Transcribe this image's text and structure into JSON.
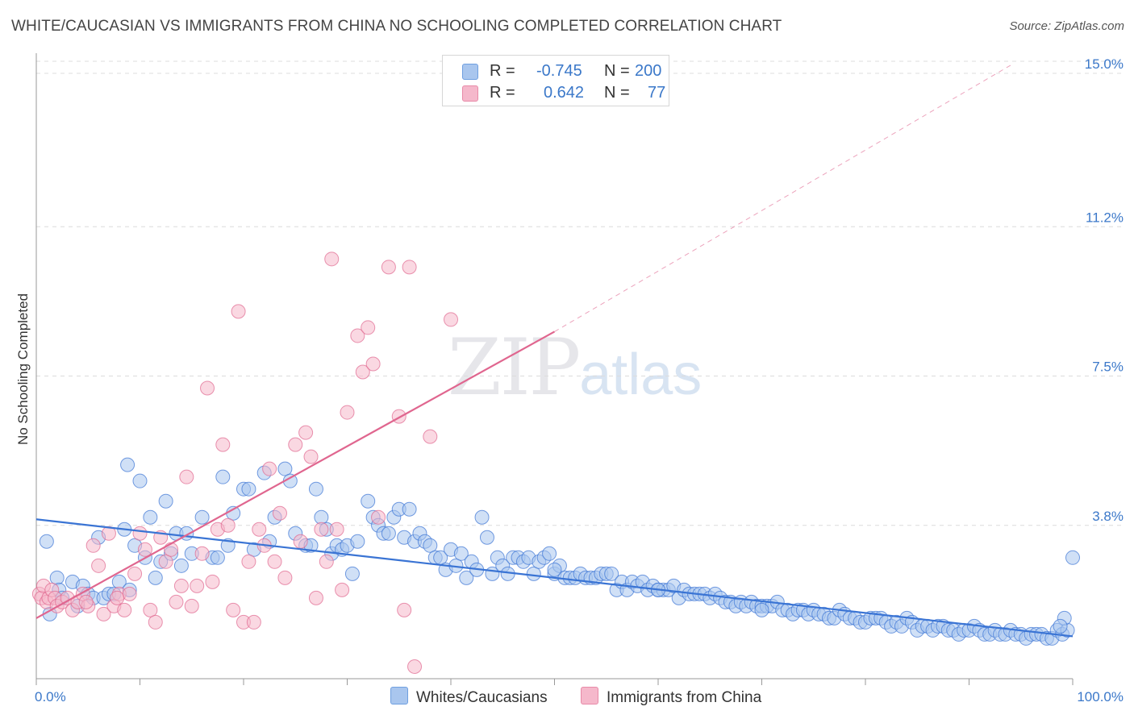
{
  "title": "WHITE/CAUCASIAN VS IMMIGRANTS FROM CHINA NO SCHOOLING COMPLETED CORRELATION CHART",
  "source": "Source: ZipAtlas.com",
  "watermark": {
    "zip": "ZIP",
    "atlas": "atlas"
  },
  "legend": {
    "rows": [
      {
        "r_label": "R =",
        "r_value": "-0.745",
        "n_label": "N =",
        "n_value": "200",
        "color": "#a9c6ee"
      },
      {
        "r_label": "R =",
        "r_value": "0.642",
        "n_label": "N =",
        "n_value": "77",
        "color": "#f5b8cb"
      }
    ]
  },
  "bottom_legend": [
    {
      "label": "Whites/Caucasians",
      "color": "#a9c6ee"
    },
    {
      "label": "Immigrants from China",
      "color": "#f5b8cb"
    }
  ],
  "chart_data": {
    "type": "scatter",
    "title": "WHITE/CAUCASIAN VS IMMIGRANTS FROM CHINA NO SCHOOLING COMPLETED CORRELATION CHART",
    "xlabel": "",
    "ylabel": "No Schooling Completed",
    "xlim": [
      0,
      100
    ],
    "ylim": [
      0,
      15.3
    ],
    "x_tick_labels": [
      "0.0%",
      "100.0%"
    ],
    "y_ticks": [
      3.8,
      7.5,
      11.2,
      15.0
    ],
    "y_tick_labels": [
      "3.8%",
      "7.5%",
      "11.2%",
      "15.0%"
    ],
    "grid": "horizontal dashed",
    "legend_placement": "top-center",
    "series": [
      {
        "name": "Whites/Caucasians",
        "color": "#3a74d4",
        "fill": "#a9c6ee",
        "trend": {
          "x0": 0,
          "y0": 3.95,
          "x1": 100,
          "y1": 1.05,
          "dash_to": null
        },
        "points": [
          [
            1,
            3.4
          ],
          [
            1.3,
            1.6
          ],
          [
            2,
            2.5
          ],
          [
            2.2,
            2.2
          ],
          [
            2.5,
            2.0
          ],
          [
            3.5,
            2.4
          ],
          [
            4,
            1.8
          ],
          [
            4.5,
            2.3
          ],
          [
            5,
            2.1
          ],
          [
            5.5,
            2.0
          ],
          [
            6,
            3.5
          ],
          [
            6.5,
            2.0
          ],
          [
            7,
            2.1
          ],
          [
            7.5,
            2.1
          ],
          [
            8,
            2.4
          ],
          [
            8.5,
            3.7
          ],
          [
            8.8,
            5.3
          ],
          [
            9,
            2.2
          ],
          [
            9.5,
            3.3
          ],
          [
            10,
            4.9
          ],
          [
            10.5,
            3.0
          ],
          [
            11,
            4.0
          ],
          [
            11.5,
            2.5
          ],
          [
            12,
            2.9
          ],
          [
            12.5,
            4.4
          ],
          [
            13,
            3.1
          ],
          [
            13.5,
            3.6
          ],
          [
            14,
            2.8
          ],
          [
            14.5,
            3.6
          ],
          [
            15,
            3.1
          ],
          [
            16,
            4.0
          ],
          [
            17,
            3.0
          ],
          [
            17.5,
            3.0
          ],
          [
            18,
            5.0
          ],
          [
            18.5,
            3.3
          ],
          [
            19,
            4.1
          ],
          [
            20,
            4.7
          ],
          [
            20.5,
            4.7
          ],
          [
            21,
            3.2
          ],
          [
            22,
            5.1
          ],
          [
            22.5,
            3.4
          ],
          [
            23,
            4.0
          ],
          [
            24,
            5.2
          ],
          [
            24.5,
            4.9
          ],
          [
            25,
            3.6
          ],
          [
            26,
            3.3
          ],
          [
            26.5,
            3.3
          ],
          [
            27,
            4.7
          ],
          [
            27.5,
            4.0
          ],
          [
            28,
            3.7
          ],
          [
            28.5,
            3.1
          ],
          [
            29,
            3.3
          ],
          [
            29.5,
            3.2
          ],
          [
            30,
            3.3
          ],
          [
            30.5,
            2.6
          ],
          [
            31,
            3.4
          ],
          [
            32,
            4.4
          ],
          [
            32.5,
            4.0
          ],
          [
            33,
            3.8
          ],
          [
            33.5,
            3.6
          ],
          [
            34,
            3.6
          ],
          [
            34.5,
            4.0
          ],
          [
            35,
            4.2
          ],
          [
            35.5,
            3.5
          ],
          [
            36,
            4.2
          ],
          [
            36.5,
            3.4
          ],
          [
            37,
            3.6
          ],
          [
            37.5,
            3.4
          ],
          [
            38,
            3.3
          ],
          [
            38.5,
            3.0
          ],
          [
            39,
            3.0
          ],
          [
            39.5,
            2.7
          ],
          [
            40,
            3.2
          ],
          [
            40.5,
            2.8
          ],
          [
            41,
            3.1
          ],
          [
            41.5,
            2.5
          ],
          [
            42,
            2.9
          ],
          [
            42.5,
            2.7
          ],
          [
            43,
            4.0
          ],
          [
            43.5,
            3.5
          ],
          [
            44,
            2.6
          ],
          [
            44.5,
            3.0
          ],
          [
            45,
            2.8
          ],
          [
            45.5,
            2.6
          ],
          [
            46,
            3.0
          ],
          [
            46.5,
            3.0
          ],
          [
            47,
            2.9
          ],
          [
            47.5,
            3.0
          ],
          [
            48,
            2.6
          ],
          [
            48.5,
            2.9
          ],
          [
            49,
            3.0
          ],
          [
            49.5,
            3.1
          ],
          [
            50,
            2.6
          ],
          [
            50.5,
            2.8
          ],
          [
            51,
            2.5
          ],
          [
            51.5,
            2.5
          ],
          [
            52,
            2.5
          ],
          [
            52.5,
            2.6
          ],
          [
            53,
            2.5
          ],
          [
            53.5,
            2.5
          ],
          [
            54,
            2.5
          ],
          [
            54.5,
            2.6
          ],
          [
            55,
            2.6
          ],
          [
            55.5,
            2.6
          ],
          [
            56,
            2.2
          ],
          [
            56.5,
            2.4
          ],
          [
            57,
            2.2
          ],
          [
            57.5,
            2.4
          ],
          [
            58,
            2.3
          ],
          [
            58.5,
            2.4
          ],
          [
            59,
            2.2
          ],
          [
            59.5,
            2.3
          ],
          [
            60,
            2.2
          ],
          [
            60.5,
            2.2
          ],
          [
            61,
            2.2
          ],
          [
            61.5,
            2.3
          ],
          [
            62,
            2.0
          ],
          [
            62.5,
            2.2
          ],
          [
            63,
            2.1
          ],
          [
            63.5,
            2.1
          ],
          [
            64,
            2.1
          ],
          [
            64.5,
            2.1
          ],
          [
            65,
            2.0
          ],
          [
            65.5,
            2.1
          ],
          [
            66,
            2.0
          ],
          [
            66.5,
            1.9
          ],
          [
            67,
            1.9
          ],
          [
            67.5,
            1.8
          ],
          [
            68,
            1.9
          ],
          [
            68.5,
            1.8
          ],
          [
            69,
            1.9
          ],
          [
            69.5,
            1.8
          ],
          [
            70,
            1.8
          ],
          [
            70.5,
            1.8
          ],
          [
            71,
            1.8
          ],
          [
            71.5,
            1.9
          ],
          [
            72,
            1.7
          ],
          [
            72.5,
            1.7
          ],
          [
            73,
            1.6
          ],
          [
            73.5,
            1.7
          ],
          [
            74,
            1.7
          ],
          [
            74.5,
            1.6
          ],
          [
            75,
            1.7
          ],
          [
            75.5,
            1.6
          ],
          [
            76,
            1.6
          ],
          [
            76.5,
            1.5
          ],
          [
            77,
            1.5
          ],
          [
            77.5,
            1.7
          ],
          [
            78,
            1.6
          ],
          [
            78.5,
            1.5
          ],
          [
            79,
            1.5
          ],
          [
            79.5,
            1.4
          ],
          [
            80,
            1.4
          ],
          [
            80.5,
            1.5
          ],
          [
            81,
            1.5
          ],
          [
            81.5,
            1.5
          ],
          [
            82,
            1.4
          ],
          [
            82.5,
            1.3
          ],
          [
            83,
            1.4
          ],
          [
            83.5,
            1.3
          ],
          [
            84,
            1.5
          ],
          [
            84.5,
            1.4
          ],
          [
            85,
            1.2
          ],
          [
            85.5,
            1.3
          ],
          [
            86,
            1.3
          ],
          [
            86.5,
            1.2
          ],
          [
            87,
            1.3
          ],
          [
            87.5,
            1.3
          ],
          [
            88,
            1.2
          ],
          [
            88.5,
            1.2
          ],
          [
            89,
            1.1
          ],
          [
            89.5,
            1.2
          ],
          [
            90,
            1.2
          ],
          [
            90.5,
            1.3
          ],
          [
            91,
            1.2
          ],
          [
            91.5,
            1.1
          ],
          [
            92,
            1.1
          ],
          [
            92.5,
            1.2
          ],
          [
            93,
            1.1
          ],
          [
            93.5,
            1.1
          ],
          [
            94,
            1.2
          ],
          [
            94.5,
            1.1
          ],
          [
            95,
            1.1
          ],
          [
            95.5,
            1.0
          ],
          [
            96,
            1.1
          ],
          [
            96.5,
            1.1
          ],
          [
            97,
            1.1
          ],
          [
            97.5,
            1.0
          ],
          [
            98,
            1.0
          ],
          [
            98.5,
            1.2
          ],
          [
            99,
            1.1
          ],
          [
            99.5,
            1.2
          ],
          [
            100,
            3.0
          ],
          [
            99.2,
            1.5
          ],
          [
            98.8,
            1.3
          ],
          [
            70,
            1.7
          ],
          [
            60,
            2.2
          ],
          [
            50,
            2.7
          ]
        ]
      },
      {
        "name": "Immigrants from China",
        "color": "#e0668f",
        "fill": "#f5b8cb",
        "trend": {
          "x0": 0,
          "y0": 1.5,
          "x1": 50,
          "y1": 8.6,
          "dash_to": {
            "x": 94,
            "y": 15.0
          }
        },
        "points": [
          [
            0.3,
            2.1
          ],
          [
            0.5,
            2.0
          ],
          [
            0.7,
            2.3
          ],
          [
            1,
            1.9
          ],
          [
            1.2,
            2.0
          ],
          [
            1.5,
            2.2
          ],
          [
            1.8,
            2.0
          ],
          [
            2,
            1.8
          ],
          [
            2.5,
            1.9
          ],
          [
            3,
            2.0
          ],
          [
            3.5,
            1.7
          ],
          [
            4,
            1.9
          ],
          [
            4.5,
            2.1
          ],
          [
            5,
            1.8
          ],
          [
            5.5,
            3.3
          ],
          [
            6,
            2.8
          ],
          [
            6.5,
            1.6
          ],
          [
            7,
            3.6
          ],
          [
            7.5,
            1.8
          ],
          [
            8,
            2.1
          ],
          [
            8.5,
            1.7
          ],
          [
            9,
            2.1
          ],
          [
            9.5,
            2.6
          ],
          [
            10,
            3.6
          ],
          [
            10.5,
            3.2
          ],
          [
            11,
            1.7
          ],
          [
            11.5,
            1.4
          ],
          [
            12,
            3.5
          ],
          [
            12.5,
            2.9
          ],
          [
            13,
            3.2
          ],
          [
            13.5,
            1.9
          ],
          [
            14,
            2.3
          ],
          [
            14.5,
            5.0
          ],
          [
            15,
            1.8
          ],
          [
            15.5,
            2.3
          ],
          [
            16,
            3.1
          ],
          [
            16.5,
            7.2
          ],
          [
            17,
            2.4
          ],
          [
            17.5,
            3.7
          ],
          [
            18,
            5.8
          ],
          [
            18.5,
            3.8
          ],
          [
            19,
            1.7
          ],
          [
            19.5,
            9.1
          ],
          [
            20,
            1.4
          ],
          [
            20.5,
            2.9
          ],
          [
            21,
            1.4
          ],
          [
            21.5,
            3.7
          ],
          [
            22,
            3.3
          ],
          [
            22.5,
            5.2
          ],
          [
            23,
            2.9
          ],
          [
            23.5,
            4.1
          ],
          [
            24,
            2.5
          ],
          [
            25,
            5.8
          ],
          [
            25.5,
            3.4
          ],
          [
            26,
            6.1
          ],
          [
            26.5,
            5.5
          ],
          [
            27,
            2.0
          ],
          [
            27.5,
            3.7
          ],
          [
            28,
            2.9
          ],
          [
            28.5,
            10.4
          ],
          [
            29,
            3.7
          ],
          [
            29.5,
            2.2
          ],
          [
            30,
            6.6
          ],
          [
            31,
            8.5
          ],
          [
            31.5,
            7.6
          ],
          [
            32,
            8.7
          ],
          [
            32.5,
            7.8
          ],
          [
            33,
            4.0
          ],
          [
            34,
            10.2
          ],
          [
            35,
            6.5
          ],
          [
            35.5,
            1.7
          ],
          [
            36,
            10.2
          ],
          [
            36.5,
            0.3
          ],
          [
            38,
            6.0
          ],
          [
            40,
            8.9
          ],
          [
            4.8,
            1.9
          ],
          [
            7.8,
            2.0
          ]
        ]
      }
    ]
  }
}
